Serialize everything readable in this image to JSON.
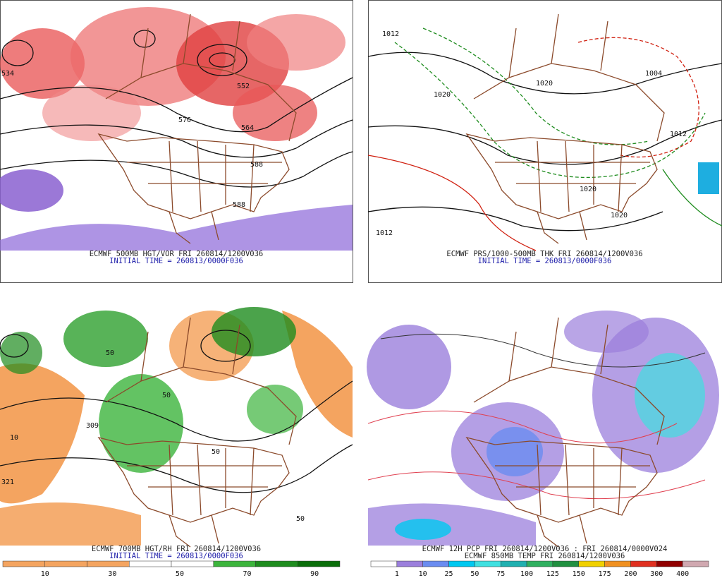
{
  "panels": [
    {
      "caption": "ECMWF 500MB HGT/VOR FRI 260814/1200V036",
      "subcaption": "INITIAL TIME = 260813/0000F036",
      "contour_labels": [
        "534",
        "552",
        "576",
        "564",
        "588",
        "588"
      ]
    },
    {
      "caption": "ECMWF PRS/1000-500MB THK FRI 260814/1200V036",
      "subcaption": "INITIAL TIME = 260813/0000F036",
      "contour_labels": [
        "1012",
        "1020",
        "1020",
        "1004",
        "1012",
        "1012",
        "1020",
        "1020"
      ]
    },
    {
      "caption": "ECMWF 700MB HGT/RH FRI 260814/1200V036",
      "subcaption": "INITIAL TIME = 260813/0000F036",
      "contour_labels": [
        "309",
        "321",
        "10",
        "50",
        "50",
        "50",
        "50"
      ],
      "colorbar": {
        "labels": [
          "10",
          "30",
          "50",
          "70",
          "90"
        ],
        "colors": [
          "#f4a460",
          "#f4a460",
          "#f4a460",
          "#ffffff",
          "#ffffff",
          "#3cb43c",
          "#1e8c1e",
          "#0a6e0a"
        ]
      }
    },
    {
      "caption": "ECMWF 12H PCP FRI 260814/1200V036 : FRI 260814/0000V024",
      "subcaption": "ECMWF 850MB TEMP FRI 260814/1200V036",
      "contour_labels": [],
      "colorbar": {
        "labels": [
          "1",
          "10",
          "25",
          "50",
          "75",
          "100",
          "125",
          "150",
          "175",
          "200",
          "300",
          "400"
        ],
        "colors": [
          "#ffffff",
          "#9b7fdc",
          "#6a8cf0",
          "#00c8f0",
          "#40e0e0",
          "#20b0b0",
          "#30b060",
          "#209040",
          "#f0d000",
          "#f09020",
          "#e03020",
          "#900000",
          "#d0a8b0"
        ]
      }
    }
  ]
}
